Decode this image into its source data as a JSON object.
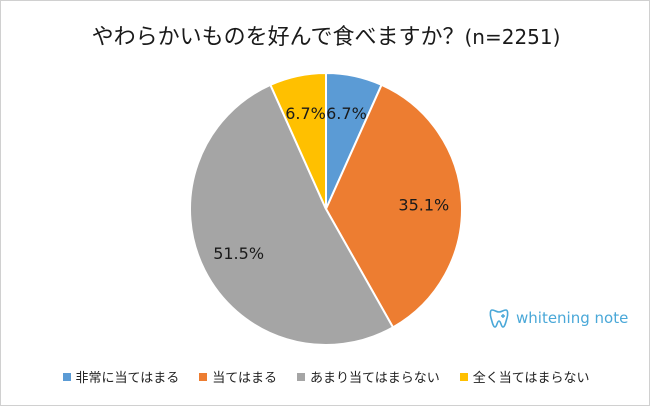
{
  "chart_data": {
    "type": "pie",
    "title": "やわらかいものを好んで食べますか？",
    "subtitle": "(n=2251)",
    "series": [
      {
        "name": "非常に当てはまる",
        "value": 6.7,
        "label": "6.7%",
        "color": "#5b9bd5"
      },
      {
        "name": "当てはまる",
        "value": 35.1,
        "label": "35.1%",
        "color": "#ed7d31"
      },
      {
        "name": "あまり当てはまらない",
        "value": 51.5,
        "label": "51.5%",
        "color": "#a5a5a5"
      },
      {
        "name": "全く当てはまらない",
        "value": 6.7,
        "label": "6.7%",
        "color": "#ffc000"
      }
    ],
    "legend_position": "bottom"
  },
  "logo": {
    "text": "whitening note",
    "icon": "tooth-icon"
  }
}
